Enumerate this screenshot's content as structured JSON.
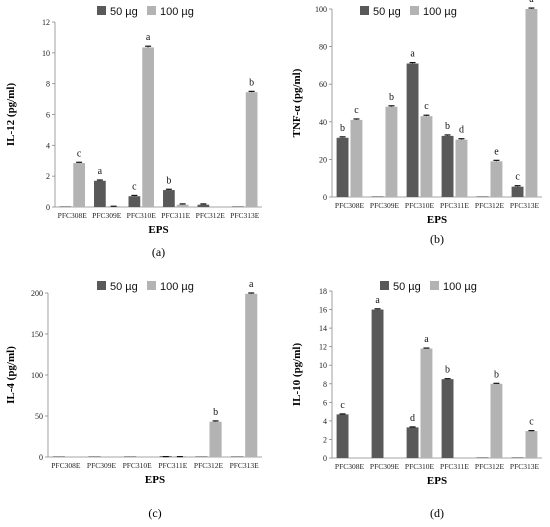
{
  "chart_data": [
    {
      "type": "bar",
      "panel_label": "(a)",
      "ylabel": "IL-12 (pg/ml)",
      "xlabel": "EPS",
      "ylim": [
        0,
        12
      ],
      "yticks": [
        0,
        2,
        4,
        6,
        8,
        10,
        12
      ],
      "categories": [
        "PFC308E",
        "PFC309E",
        "PFC310E",
        "PFC311E",
        "PFC312E",
        "PFC313E"
      ],
      "series": [
        {
          "name": "50 µg",
          "color": "#595959",
          "values": [
            0,
            1.7,
            0.7,
            1.1,
            0.15,
            0
          ],
          "errors": [
            0,
            0.05,
            0.05,
            0.05,
            0.05,
            0
          ],
          "labels": [
            "",
            "a",
            "c",
            "b",
            "",
            ""
          ]
        },
        {
          "name": "100 µg",
          "color": "#b3b3b3",
          "values": [
            2.85,
            0.05,
            10.35,
            0.15,
            0,
            7.45
          ],
          "errors": [
            0.05,
            0,
            0.08,
            0.05,
            0,
            0.05
          ],
          "labels": [
            "c",
            "",
            "a",
            "",
            "",
            "b"
          ]
        }
      ]
    },
    {
      "type": "bar",
      "panel_label": "(b)",
      "ylabel": "TNF-α  (pg/ml)",
      "xlabel": "EPS",
      "ylim": [
        0,
        100
      ],
      "yticks": [
        0,
        20,
        40,
        60,
        80,
        100
      ],
      "categories": [
        "PFC308E",
        "PFC309E",
        "PFC310E",
        "PFC311E",
        "PFC312E",
        "PFC313E"
      ],
      "series": [
        {
          "name": "50 µg",
          "color": "#595959",
          "values": [
            31.5,
            0,
            71,
            32.5,
            0,
            5.5
          ],
          "errors": [
            0.5,
            0,
            0.5,
            0.5,
            0,
            0.5
          ],
          "labels": [
            "b",
            "",
            "a",
            "b",
            "",
            "c"
          ]
        },
        {
          "name": "100 µg",
          "color": "#b3b3b3",
          "values": [
            41,
            48,
            43,
            30.5,
            19,
            100
          ],
          "errors": [
            0.5,
            0.5,
            0.5,
            0.5,
            0.5,
            0.5
          ],
          "labels": [
            "c",
            "b",
            "c",
            "d",
            "e",
            "a"
          ]
        }
      ]
    },
    {
      "type": "bar",
      "panel_label": "(c)",
      "ylabel": "IL-4 (pg/ml)",
      "xlabel": "EPS",
      "ylim": [
        0,
        200
      ],
      "yticks": [
        0,
        50,
        100,
        150,
        200
      ],
      "categories": [
        "PFC308E",
        "PFC309E",
        "PFC310E",
        "PFC311E",
        "PFC312E",
        "PFC313E"
      ],
      "series": [
        {
          "name": "50 µg",
          "color": "#595959",
          "values": [
            0,
            0,
            0,
            0.5,
            0,
            0
          ],
          "errors": [
            0,
            0,
            0,
            0,
            0,
            0
          ],
          "labels": [
            "",
            "",
            "",
            "",
            "",
            ""
          ]
        },
        {
          "name": "100 µg",
          "color": "#b3b3b3",
          "values": [
            0,
            0,
            0,
            0.5,
            43,
            199
          ],
          "errors": [
            0,
            0,
            0,
            0,
            1,
            1
          ],
          "labels": [
            "",
            "",
            "",
            "",
            "b",
            "a"
          ]
        }
      ]
    },
    {
      "type": "bar",
      "panel_label": "(d)",
      "ylabel": "IL-10 (pg/ml)",
      "xlabel": "EPS",
      "ylim": [
        0,
        18
      ],
      "yticks": [
        0,
        2,
        4,
        6,
        8,
        10,
        12,
        14,
        16,
        18
      ],
      "categories": [
        "PFC308E",
        "PFC309E",
        "PFC310E",
        "PFC311E",
        "PFC312E",
        "PFC313E"
      ],
      "series": [
        {
          "name": "50 µg",
          "color": "#595959",
          "values": [
            4.7,
            16,
            3.3,
            8.5,
            0,
            0
          ],
          "errors": [
            0.05,
            0.08,
            0.05,
            0.05,
            0,
            0
          ],
          "labels": [
            "c",
            "a",
            "d",
            "b",
            "",
            ""
          ]
        },
        {
          "name": "100 µg",
          "color": "#b3b3b3",
          "values": [
            0,
            0,
            11.8,
            0,
            8,
            2.9
          ],
          "errors": [
            0,
            0,
            0.05,
            0,
            0.05,
            0.05
          ],
          "labels": [
            "",
            "",
            "a",
            "",
            "b",
            "c"
          ]
        }
      ]
    }
  ]
}
